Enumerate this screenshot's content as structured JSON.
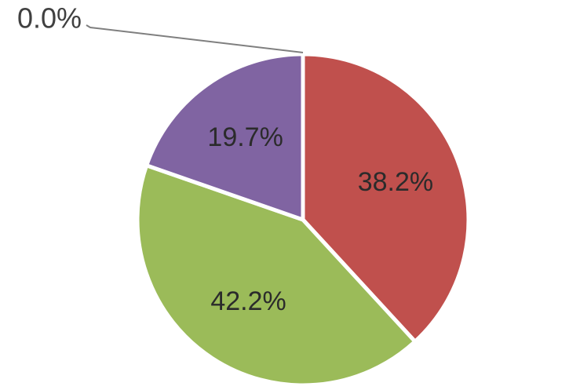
{
  "chart_data": {
    "type": "pie",
    "values": [
      38.2,
      42.2,
      19.7,
      0.0
    ],
    "value_labels": [
      "38.2%",
      "42.2%",
      "19.7%",
      "0.0%"
    ],
    "colors": [
      "#c0504d",
      "#9bbb59",
      "#8064a2"
    ]
  }
}
